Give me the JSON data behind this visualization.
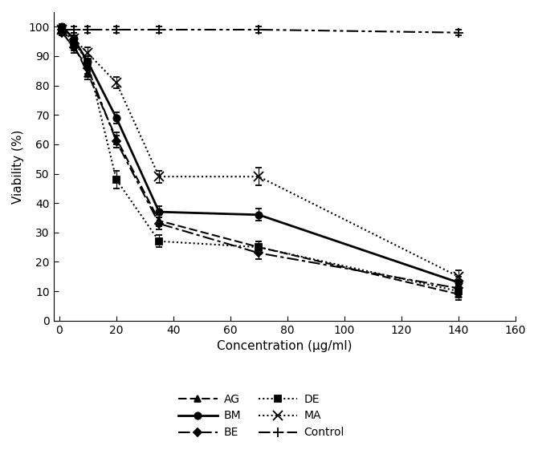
{
  "x_values": [
    1,
    5,
    10,
    20,
    35,
    70,
    140
  ],
  "AG": {
    "y": [
      99,
      94,
      84,
      62,
      34,
      25,
      9
    ],
    "yerr": [
      1,
      2,
      2,
      2,
      2,
      2,
      2
    ],
    "label": "AG"
  },
  "BM": {
    "y": [
      100,
      96,
      88,
      69,
      37,
      36,
      13
    ],
    "yerr": [
      1,
      1,
      2,
      2,
      2,
      2,
      2
    ],
    "label": "BM"
  },
  "BE": {
    "y": [
      98,
      93,
      86,
      61,
      33,
      23,
      11
    ],
    "yerr": [
      1,
      2,
      2,
      2,
      2,
      2,
      2
    ],
    "label": "BE"
  },
  "DE": {
    "y": [
      99,
      95,
      88,
      48,
      27,
      25,
      10
    ],
    "yerr": [
      1,
      2,
      2,
      3,
      2,
      2,
      2
    ],
    "label": "DE"
  },
  "MA": {
    "y": [
      99,
      96,
      91,
      81,
      49,
      49,
      15
    ],
    "yerr": [
      1,
      2,
      2,
      2,
      2,
      3,
      2
    ],
    "label": "MA"
  },
  "Control": {
    "y": [
      99,
      99,
      99,
      99,
      99,
      99,
      98
    ],
    "yerr": [
      1,
      1,
      1,
      1,
      1,
      1,
      1
    ],
    "label": "Control"
  },
  "xlabel": "Concentration (μg/ml)",
  "ylabel": "Viability (%)",
  "xlim": [
    -2,
    160
  ],
  "ylim": [
    0,
    105
  ],
  "xticks": [
    0,
    20,
    40,
    60,
    80,
    100,
    120,
    140,
    160
  ],
  "yticks": [
    0,
    10,
    20,
    30,
    40,
    50,
    60,
    70,
    80,
    90,
    100
  ],
  "color": "#000000",
  "background": "#ffffff",
  "markersize": 6,
  "linewidth": 1.5,
  "capsize": 3
}
